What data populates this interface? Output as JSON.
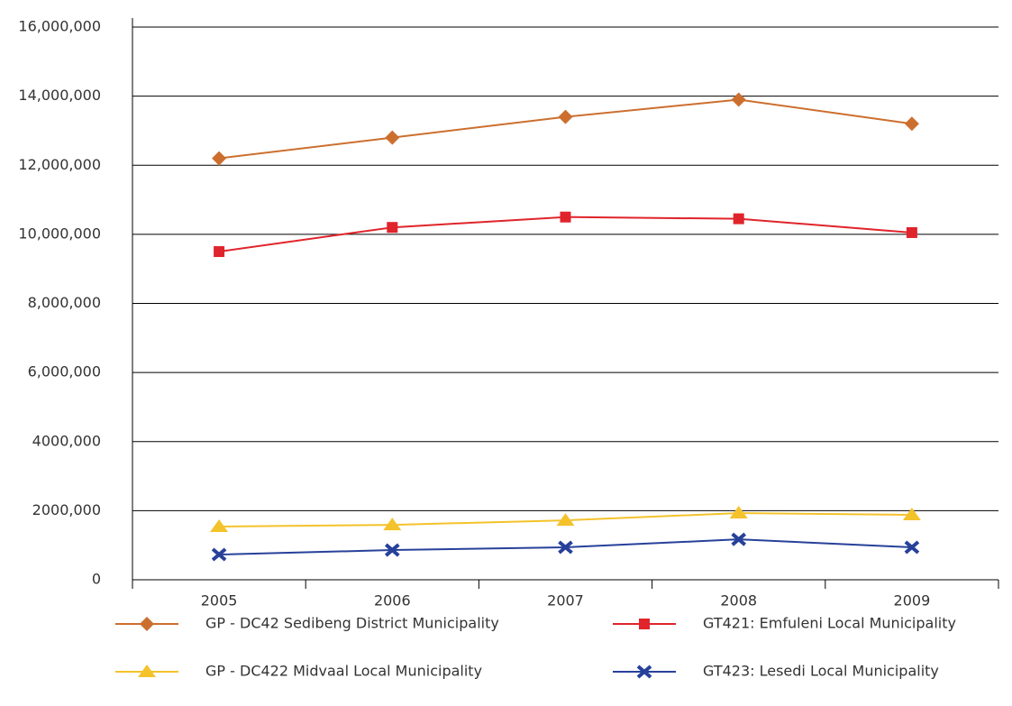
{
  "chart_data": {
    "type": "line",
    "categories": [
      "2005",
      "2006",
      "2007",
      "2008",
      "2009"
    ],
    "series": [
      {
        "name": "GP - DC42 Sedibeng District Municipality",
        "color": "#cc6f2e",
        "marker": "diamond",
        "values": [
          12200000,
          12800000,
          13400000,
          13900000,
          13200000
        ]
      },
      {
        "name": "GT421: Emfuleni Local Municipality",
        "color": "#e0242b",
        "marker": "square",
        "values": [
          9500000,
          10200000,
          10500000,
          10450000,
          10050000
        ]
      },
      {
        "name": "GP - DC422 Midvaal Local Municipality",
        "color": "#f4c22b",
        "marker": "triangle",
        "values": [
          1540000,
          1590000,
          1720000,
          1930000,
          1880000
        ]
      },
      {
        "name": "GT423: Lesedi Local Municipality",
        "color": "#27419a",
        "marker": "cross",
        "values": [
          730000,
          860000,
          940000,
          1170000,
          940000
        ]
      }
    ],
    "ylim": [
      0,
      16000000
    ],
    "yticks": [
      0,
      {
        "value": 2000000,
        "label": "2000,000"
      },
      {
        "value": 4000000,
        "label": "4000,000"
      },
      {
        "value": 6000000,
        "label": "6,000,000"
      },
      {
        "value": 8000000,
        "label": "8,000,000"
      },
      {
        "value": 10000000,
        "label": "10,000,000"
      },
      {
        "value": 12000000,
        "label": "12,000,000"
      },
      {
        "value": 14000000,
        "label": "14,000,000"
      },
      {
        "value": 16000000,
        "label": "16,000,000"
      }
    ],
    "grid": true,
    "legend": "bottom"
  }
}
